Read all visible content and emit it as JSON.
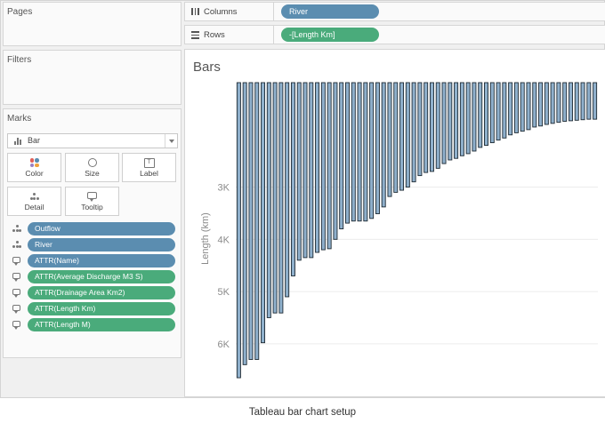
{
  "panels": {
    "pages": "Pages",
    "filters": "Filters",
    "marks": "Marks"
  },
  "marks_card": {
    "mark_type": "Bar",
    "buttons": [
      {
        "label": "Color",
        "icon": "color-dots-icon"
      },
      {
        "label": "Size",
        "icon": "size-icon"
      },
      {
        "label": "Label",
        "icon": "label-icon"
      },
      {
        "label": "Detail",
        "icon": "detail-icon"
      },
      {
        "label": "Tooltip",
        "icon": "tooltip-icon"
      }
    ],
    "fields": [
      {
        "label": "Outflow",
        "role": "detail",
        "color": "#5b8db0"
      },
      {
        "label": "River",
        "role": "detail",
        "color": "#5b8db0"
      },
      {
        "label": "ATTR(Name)",
        "role": "tooltip",
        "color": "#5b8db0"
      },
      {
        "label": "ATTR(Average Discharge M3 S)",
        "role": "tooltip",
        "color": "#4aab7b"
      },
      {
        "label": "ATTR(Drainage Area Km2)",
        "role": "tooltip",
        "color": "#4aab7b"
      },
      {
        "label": "ATTR(Length Km)",
        "role": "tooltip",
        "color": "#4aab7b"
      },
      {
        "label": "ATTR(Length M)",
        "role": "tooltip",
        "color": "#4aab7b"
      }
    ]
  },
  "shelves": {
    "columns": {
      "label": "Columns",
      "pill": "River",
      "color": "#5b8db0"
    },
    "rows": {
      "label": "Rows",
      "pill": "-[Length Km]",
      "color": "#4aab7b"
    }
  },
  "viz": {
    "title": "Bars"
  },
  "chart_data": {
    "type": "bar",
    "ylabel": "Length (km)",
    "y_axis_reversed": true,
    "ylim": [
      1000,
      6700
    ],
    "y_ticks": [
      "3K",
      "4K",
      "5K",
      "6K"
    ],
    "y_tick_values": [
      3000,
      4000,
      5000,
      6000
    ],
    "bar_color": "#8fb0cc",
    "bar_outline": "#1e2a33",
    "values": [
      6650,
      6400,
      6300,
      6300,
      5980,
      5500,
      5410,
      5410,
      5100,
      4700,
      4400,
      4350,
      4350,
      4250,
      4200,
      4180,
      4000,
      3800,
      3690,
      3650,
      3650,
      3650,
      3600,
      3510,
      3380,
      3180,
      3100,
      3060,
      3000,
      2900,
      2780,
      2720,
      2700,
      2640,
      2550,
      2480,
      2450,
      2400,
      2360,
      2310,
      2240,
      2200,
      2150,
      2100,
      2060,
      2000,
      1960,
      1930,
      1900,
      1850,
      1830,
      1800,
      1780,
      1760,
      1740,
      1730,
      1720,
      1710,
      1700,
      1700
    ]
  },
  "caption": "Tableau bar chart setup"
}
